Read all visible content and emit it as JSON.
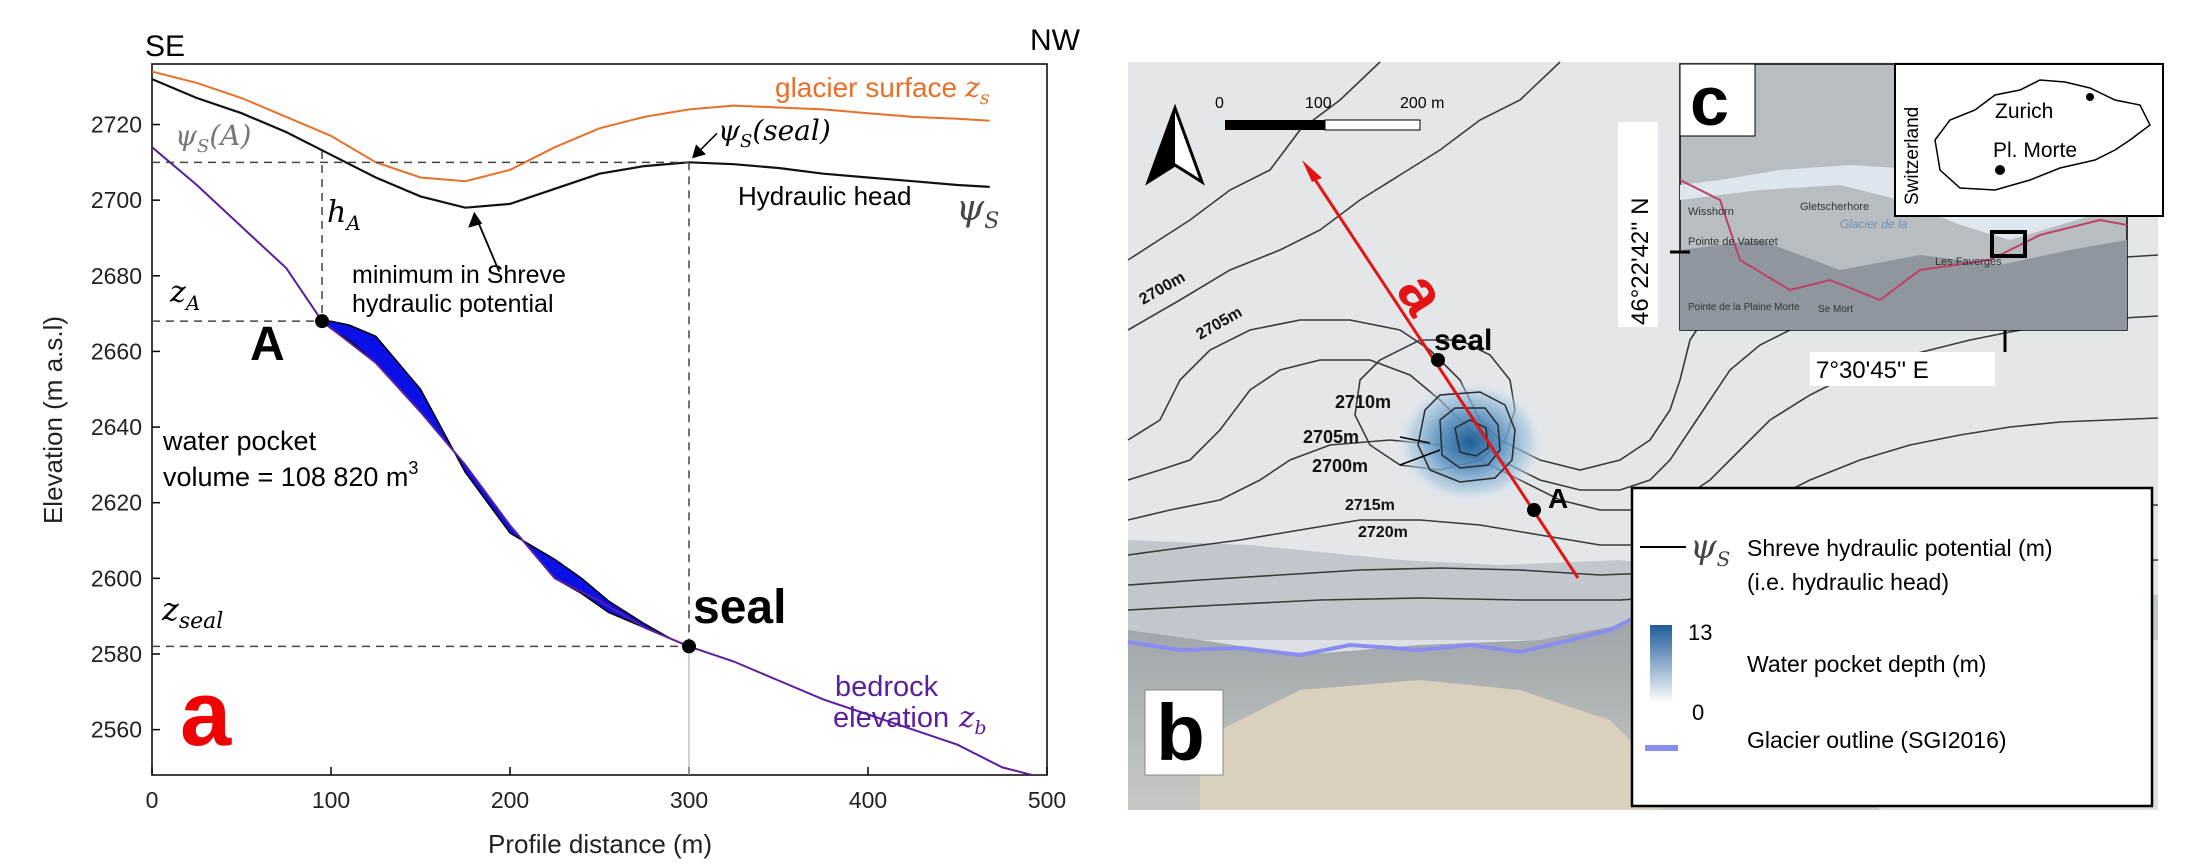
{
  "panel_a": {
    "label": "a",
    "dir_left": "SE",
    "dir_right": "NW",
    "glacier_surface_label": "glacier surface",
    "glacier_surface_sym": "z",
    "glacier_surface_sub": "s",
    "hydraulic_head_label": "Hydraulic head",
    "psi_label": "ψ",
    "psi_sub": "S",
    "psi_a": "ψ",
    "psi_a_sub": "S",
    "psi_a_arg": "(A)",
    "psi_seal": "ψ",
    "psi_seal_sub": "S",
    "psi_seal_arg": "(seal)",
    "h_a": "h",
    "h_a_sub": "A",
    "z_a": "z",
    "z_a_sub": "A",
    "z_seal": "z",
    "z_seal_sub": "seal",
    "point_a": "A",
    "point_seal": "seal",
    "min_note_line1": "minimum in Shreve",
    "min_note_line2": "hydraulic potential",
    "pocket_line1": "water pocket",
    "pocket_line2": "volume = 108 820 m",
    "pocket_sup": "3",
    "bedrock_line1": "bedrock",
    "bedrock_line2": "elevation",
    "bedrock_sym": "z",
    "bedrock_sub": "b",
    "colors": {
      "surface": "#e8702a",
      "head": "#111111",
      "bedrock": "#5b1f9e",
      "pocket": "#0a10e6",
      "label_red": "#f00000"
    }
  },
  "chart_data": {
    "type": "line",
    "xlabel": "Profile distance (m)",
    "ylabel": "Elevation (m a.s.l)",
    "xlim": [
      0,
      500
    ],
    "ylim": [
      2548,
      2736
    ],
    "xticks": [
      0,
      100,
      200,
      300,
      400,
      500
    ],
    "yticks": [
      2560,
      2580,
      2600,
      2620,
      2640,
      2660,
      2680,
      2700,
      2720
    ],
    "grid": false,
    "series": [
      {
        "name": "glacier surface",
        "x": [
          0,
          25,
          50,
          75,
          100,
          125,
          150,
          175,
          200,
          225,
          250,
          275,
          300,
          325,
          350,
          375,
          400,
          425,
          450,
          468
        ],
        "y": [
          2734,
          2731,
          2727,
          2722,
          2717,
          2710,
          2706,
          2705,
          2708,
          2714,
          2719,
          2722,
          2724,
          2725,
          2724.5,
          2724,
          2723,
          2722,
          2721.5,
          2721
        ]
      },
      {
        "name": "Hydraulic head",
        "x": [
          0,
          25,
          50,
          75,
          100,
          125,
          150,
          175,
          200,
          225,
          250,
          275,
          300,
          325,
          350,
          375,
          400,
          425,
          450,
          468
        ],
        "y": [
          2732,
          2727,
          2723,
          2718,
          2712,
          2706,
          2701,
          2698,
          2699,
          2703,
          2707,
          2709,
          2710,
          2709.5,
          2708.5,
          2707,
          2706,
          2705,
          2704,
          2703.5
        ]
      },
      {
        "name": "bedrock elevation",
        "x": [
          0,
          25,
          50,
          75,
          95,
          125,
          150,
          175,
          200,
          225,
          250,
          275,
          300,
          325,
          350,
          375,
          400,
          425,
          450,
          475,
          500
        ],
        "y": [
          2714,
          2704,
          2693,
          2682,
          2668,
          2657,
          2644,
          2630,
          2614,
          2600,
          2594,
          2587,
          2582,
          2578,
          2573,
          2568,
          2564,
          2560,
          2556,
          2550,
          2547
        ]
      }
    ],
    "water_pocket": {
      "upper_x": [
        95,
        100,
        110,
        125,
        150,
        175,
        200,
        225,
        240,
        255,
        275,
        290,
        300
      ],
      "upper_y": [
        2668,
        2668,
        2667,
        2664,
        2650,
        2628,
        2612,
        2605,
        2600,
        2594,
        2588,
        2584,
        2582
      ],
      "lower_x": [
        95,
        100,
        110,
        125,
        150,
        175,
        200,
        225,
        240,
        255,
        275,
        290,
        300
      ],
      "lower_y": [
        2668,
        2666,
        2663,
        2657,
        2644,
        2630,
        2614,
        2600,
        2596,
        2591,
        2587,
        2584,
        2582
      ]
    },
    "annotations": {
      "A": [
        95,
        2668
      ],
      "seal": [
        300,
        2582
      ],
      "psi_A_level": 2710,
      "psi_seal_x": 300,
      "min_x": 180
    }
  },
  "panel_b": {
    "label": "b",
    "north_symbol": "north-arrow",
    "scale_labels": [
      "0",
      "100",
      "200 m"
    ],
    "profile_label": "a",
    "seal_label": "seal",
    "a_label": "A",
    "contours": [
      "2700m",
      "2705m",
      "2710m",
      "2705m",
      "2700m",
      "2715m",
      "2720m"
    ],
    "legend": {
      "psi": "ψ",
      "psi_sub": "S",
      "psi_text1": "Shreve hydraulic potential (m)",
      "psi_text2": "(i.e. hydraulic head)",
      "depth_max": "13",
      "depth_min": "0",
      "depth_text": "Water pocket depth (m)",
      "outline_text": "Glacier outline (SGI2016)"
    },
    "colors": {
      "profile": "#e51414",
      "outline": "#8a8df0",
      "pocket_deep": "#2d6da3"
    }
  },
  "panel_c": {
    "label": "c",
    "lat": "46°22'42'' N",
    "lon": "7°30'45'' E",
    "country": "Switzerland",
    "city1": "Zurich",
    "city2": "Pl. Morte",
    "map_labels": [
      "Wisshorn",
      "Gletscherhore",
      "Glacier de la",
      "Pointe de Vatseret",
      "Les Faverges",
      "Se Mort",
      "Pointe de la Plaine Morte"
    ]
  }
}
